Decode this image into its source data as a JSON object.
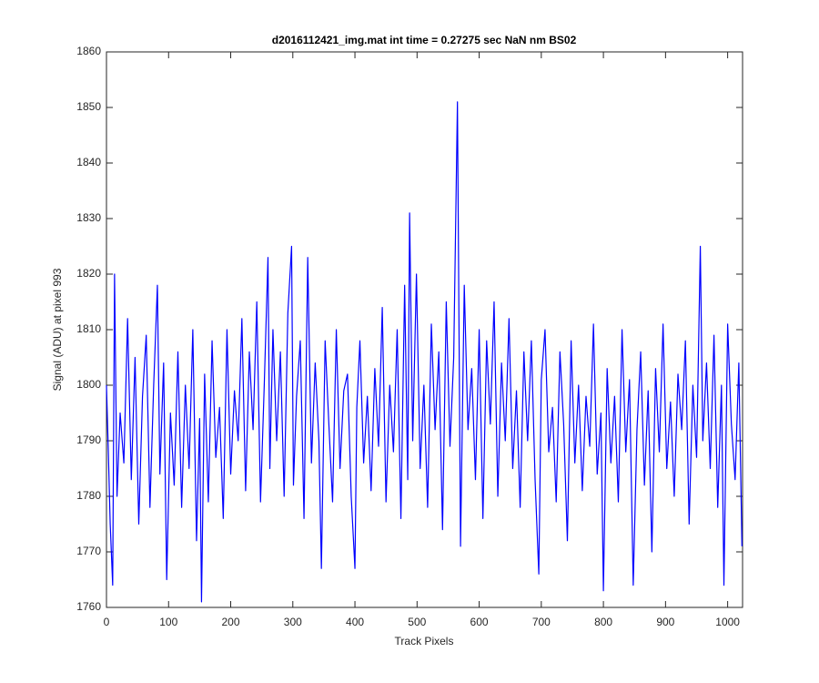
{
  "chart_data": {
    "type": "line",
    "title": "d2016112421_img.mat int time = 0.27275 sec  NaN nm BS02",
    "x_label": "Track Pixels",
    "y_label": "Signal (ADU) at pixel 993",
    "xlim": [
      0,
      1024
    ],
    "ylim": [
      1760,
      1860
    ],
    "xticks": [
      0,
      100,
      200,
      300,
      400,
      500,
      600,
      700,
      800,
      900,
      1000
    ],
    "yticks": [
      1760,
      1770,
      1780,
      1790,
      1800,
      1810,
      1820,
      1830,
      1840,
      1850,
      1860
    ],
    "grid": false,
    "series": [
      {
        "color": "#0000ff",
        "x": [
          0,
          3,
          6,
          10,
          13,
          17,
          22,
          28,
          34,
          40,
          46,
          52,
          58,
          64,
          70,
          76,
          82,
          86,
          92,
          97,
          103,
          109,
          115,
          121,
          127,
          133,
          139,
          145,
          150,
          153,
          158,
          164,
          170,
          176,
          182,
          188,
          194,
          200,
          206,
          212,
          218,
          224,
          230,
          236,
          242,
          248,
          254,
          260,
          263,
          268,
          274,
          280,
          286,
          292,
          298,
          301,
          306,
          312,
          318,
          324,
          330,
          336,
          342,
          346,
          352,
          358,
          364,
          370,
          376,
          382,
          388,
          394,
          400,
          403,
          408,
          414,
          420,
          426,
          432,
          438,
          444,
          450,
          456,
          462,
          468,
          474,
          480,
          485,
          488,
          493,
          499,
          505,
          511,
          517,
          523,
          529,
          535,
          541,
          547,
          553,
          559,
          565,
          570,
          576,
          582,
          588,
          594,
          600,
          606,
          612,
          618,
          624,
          630,
          636,
          642,
          648,
          654,
          660,
          666,
          672,
          678,
          684,
          690,
          696,
          700,
          706,
          712,
          718,
          724,
          730,
          736,
          742,
          748,
          754,
          760,
          766,
          772,
          778,
          784,
          790,
          796,
          800,
          806,
          812,
          818,
          824,
          830,
          836,
          842,
          848,
          854,
          860,
          866,
          872,
          878,
          884,
          890,
          896,
          902,
          908,
          914,
          920,
          926,
          932,
          938,
          944,
          950,
          956,
          960,
          966,
          972,
          978,
          984,
          990,
          994,
          1000,
          1006,
          1012,
          1018,
          1023
        ],
        "values": [
          1800,
          1788,
          1775,
          1764,
          1820,
          1780,
          1795,
          1786,
          1812,
          1783,
          1805,
          1775,
          1798,
          1809,
          1778,
          1800,
          1818,
          1784,
          1804,
          1765,
          1795,
          1782,
          1806,
          1778,
          1800,
          1785,
          1810,
          1772,
          1794,
          1761,
          1802,
          1779,
          1808,
          1787,
          1796,
          1776,
          1810,
          1784,
          1799,
          1790,
          1812,
          1781,
          1806,
          1792,
          1815,
          1779,
          1800,
          1823,
          1785,
          1810,
          1790,
          1806,
          1780,
          1813,
          1825,
          1782,
          1798,
          1808,
          1776,
          1823,
          1786,
          1804,
          1790,
          1767,
          1808,
          1793,
          1779,
          1810,
          1785,
          1799,
          1802,
          1780,
          1767,
          1796,
          1808,
          1786,
          1798,
          1781,
          1803,
          1789,
          1814,
          1779,
          1800,
          1788,
          1810,
          1776,
          1818,
          1783,
          1831,
          1790,
          1820,
          1785,
          1800,
          1778,
          1811,
          1792,
          1806,
          1774,
          1815,
          1789,
          1805,
          1851,
          1771,
          1818,
          1792,
          1803,
          1783,
          1810,
          1776,
          1808,
          1793,
          1815,
          1780,
          1804,
          1790,
          1812,
          1785,
          1799,
          1778,
          1806,
          1790,
          1808,
          1783,
          1766,
          1801,
          1810,
          1788,
          1796,
          1779,
          1806,
          1793,
          1772,
          1808,
          1786,
          1800,
          1781,
          1798,
          1789,
          1811,
          1784,
          1795,
          1763,
          1803,
          1786,
          1798,
          1779,
          1810,
          1788,
          1801,
          1764,
          1792,
          1806,
          1782,
          1799,
          1770,
          1803,
          1788,
          1811,
          1785,
          1797,
          1780,
          1802,
          1792,
          1808,
          1775,
          1800,
          1787,
          1825,
          1790,
          1804,
          1785,
          1809,
          1778,
          1800,
          1764,
          1811,
          1793,
          1783,
          1804,
          1771
        ]
      }
    ]
  }
}
